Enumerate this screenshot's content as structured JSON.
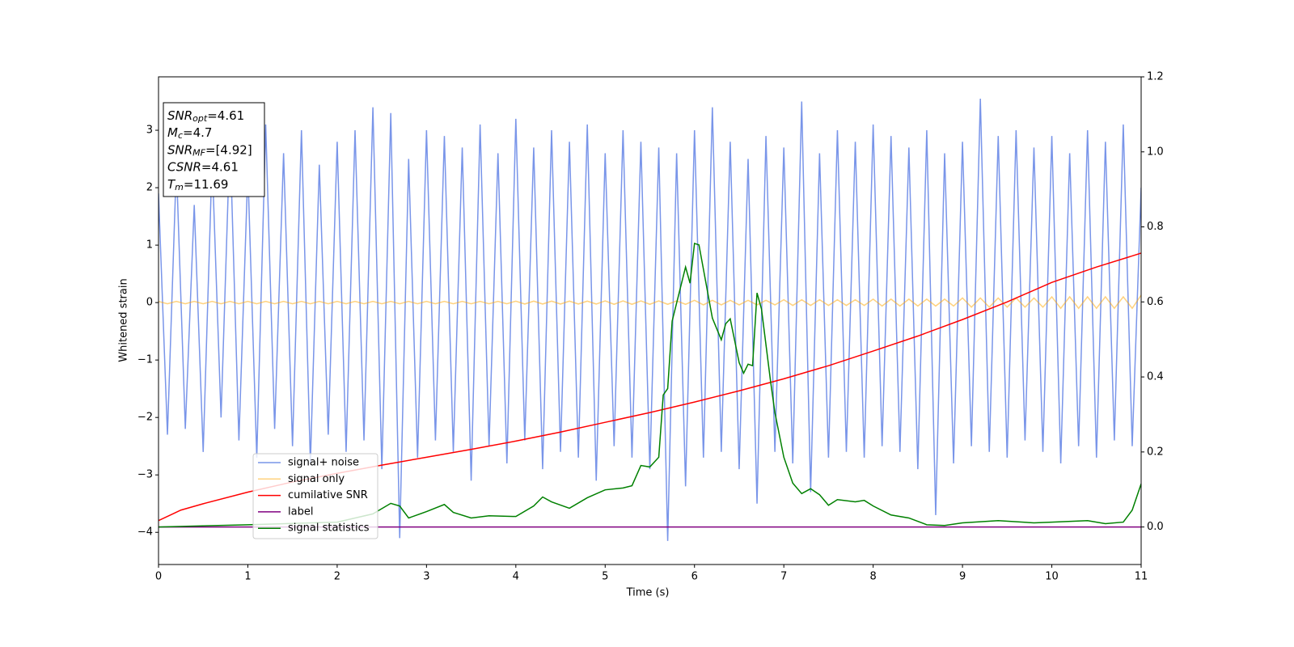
{
  "chart_data": {
    "type": "line",
    "xlabel": "Time (s)",
    "ylabel": "Whitened strain",
    "xlim": [
      0,
      11
    ],
    "xticks": [
      0,
      1,
      2,
      3,
      4,
      5,
      6,
      7,
      8,
      9,
      10,
      11
    ],
    "ylim": [
      -4.56,
      3.93
    ],
    "yticks": [
      {
        "value": -4,
        "label": "−4"
      },
      {
        "value": -3,
        "label": "−3"
      },
      {
        "value": -2,
        "label": "−2"
      },
      {
        "value": -1,
        "label": "−1"
      },
      0,
      1,
      2,
      3
    ],
    "y2lim": [
      -0.1,
      1.2
    ],
    "y2ticks": [
      {
        "value": 0,
        "label": "0.0"
      },
      0.2,
      0.4,
      0.6,
      0.8,
      {
        "value": 1,
        "label": "1.0"
      },
      1.2
    ],
    "legend": "lower left",
    "annotations": [
      {
        "symbol": "SNR",
        "sub": "opt",
        "text": "=4.61"
      },
      {
        "symbol": "M",
        "sub": "c",
        "text": "=4.7"
      },
      {
        "symbol": "SNR",
        "sub": "MF",
        "text": "=[4.92]"
      },
      {
        "symbol": "CSNR",
        "text": "=4.61"
      },
      {
        "symbol": "T",
        "sub": "m",
        "text": "=11.69"
      }
    ],
    "x": [
      0,
      0.1,
      0.2,
      0.3,
      0.4,
      0.5,
      0.6,
      0.7,
      0.8,
      0.9,
      1,
      1.1,
      1.2,
      1.3,
      1.4,
      1.5,
      1.6,
      1.7,
      1.8,
      1.9,
      2,
      2.1,
      2.2,
      2.3,
      2.4,
      2.5,
      2.6,
      2.7,
      2.8,
      2.9,
      3,
      3.1,
      3.2,
      3.3,
      3.4,
      3.5,
      3.6,
      3.7,
      3.8,
      3.9,
      4,
      4.1,
      4.2,
      4.3,
      4.4,
      4.5,
      4.6,
      4.7,
      4.8,
      4.9,
      5,
      5.1,
      5.2,
      5.3,
      5.4,
      5.5,
      5.6,
      5.7,
      5.8,
      5.9,
      6,
      6.1,
      6.2,
      6.3,
      6.4,
      6.5,
      6.6,
      6.7,
      6.8,
      6.9,
      7,
      7.1,
      7.2,
      7.3,
      7.4,
      7.5,
      7.6,
      7.7,
      7.8,
      7.9,
      8,
      8.1,
      8.2,
      8.3,
      8.4,
      8.5,
      8.6,
      8.7,
      8.8,
      8.9,
      9,
      9.1,
      9.2,
      9.3,
      9.4,
      9.5,
      9.6,
      9.7,
      9.8,
      9.9,
      10,
      10.1,
      10.2,
      10.3,
      10.4,
      10.5,
      10.6,
      10.7,
      10.8,
      10.9,
      11
    ],
    "series": [
      {
        "name": "signal+ noise",
        "color": "#7995e9",
        "axis": "y",
        "values": [
          1.9,
          -2.3,
          2.4,
          -2.2,
          1.7,
          -2.6,
          2.5,
          -2.0,
          2.9,
          -2.4,
          2.3,
          -2.7,
          3.1,
          -2.2,
          2.6,
          -2.5,
          3.0,
          -2.8,
          2.4,
          -2.3,
          2.8,
          -2.6,
          3.0,
          -2.4,
          3.4,
          -2.9,
          3.3,
          -4.1,
          2.5,
          -2.7,
          3.0,
          -2.4,
          2.9,
          -2.6,
          2.7,
          -3.1,
          3.1,
          -2.5,
          2.6,
          -2.8,
          3.2,
          -2.4,
          2.7,
          -2.9,
          3.0,
          -2.6,
          2.8,
          -2.7,
          3.1,
          -3.1,
          2.6,
          -2.5,
          3.0,
          -2.7,
          2.8,
          -2.9,
          2.7,
          -4.15,
          2.6,
          -3.2,
          3.0,
          -2.7,
          3.4,
          -2.6,
          2.8,
          -2.9,
          2.5,
          -3.5,
          2.9,
          -2.6,
          2.7,
          -2.8,
          3.5,
          -3.3,
          2.6,
          -2.7,
          3.0,
          -2.6,
          2.8,
          -2.7,
          3.1,
          -2.5,
          2.9,
          -2.6,
          2.7,
          -2.9,
          3.0,
          -3.7,
          2.6,
          -2.8,
          2.8,
          -2.5,
          3.55,
          -2.6,
          2.9,
          -2.7,
          3.0,
          -2.4,
          2.7,
          -2.6,
          2.9,
          -2.8,
          2.6,
          -2.5,
          3.0,
          -2.7,
          2.8,
          -2.4,
          3.1,
          -2.5,
          2.0
        ]
      },
      {
        "name": "signal only",
        "color": "#ffa500",
        "axis": "y",
        "values": [
          0.02,
          -0.02,
          0.02,
          -0.02,
          0.02,
          -0.02,
          0.02,
          -0.02,
          0.02,
          -0.02,
          0.02,
          -0.02,
          0.02,
          -0.02,
          0.02,
          -0.02,
          0.02,
          -0.02,
          0.02,
          -0.02,
          0.02,
          -0.02,
          0.02,
          -0.02,
          0.02,
          -0.02,
          0.02,
          -0.02,
          0.02,
          -0.02,
          0.02,
          -0.02,
          0.02,
          -0.02,
          0.02,
          -0.02,
          0.02,
          -0.02,
          0.02,
          -0.02,
          0.025,
          -0.025,
          0.025,
          -0.025,
          0.025,
          -0.025,
          0.025,
          -0.025,
          0.025,
          -0.025,
          0.03,
          -0.03,
          0.03,
          -0.03,
          0.03,
          -0.03,
          0.03,
          -0.03,
          0.03,
          -0.03,
          0.04,
          -0.04,
          0.04,
          -0.04,
          0.04,
          -0.04,
          0.04,
          -0.04,
          0.04,
          -0.04,
          0.05,
          -0.05,
          0.05,
          -0.05,
          0.05,
          -0.05,
          0.05,
          -0.05,
          0.05,
          -0.05,
          0.06,
          -0.06,
          0.06,
          -0.06,
          0.06,
          -0.06,
          0.06,
          -0.06,
          0.06,
          -0.06,
          0.08,
          -0.08,
          0.08,
          -0.08,
          0.08,
          -0.08,
          0.08,
          -0.08,
          0.08,
          -0.08,
          0.1,
          -0.1,
          0.1,
          -0.1,
          0.1,
          -0.1,
          0.1,
          -0.1,
          0.1,
          -0.1,
          0.13
        ]
      },
      {
        "name": "cumilative SNR",
        "color": "#ff0000",
        "axis": "y2",
        "x": [
          0,
          0.25,
          0.5,
          1,
          1.5,
          2,
          2.5,
          3,
          3.5,
          4,
          4.5,
          5,
          5.5,
          6,
          6.5,
          7,
          7.5,
          8,
          8.5,
          9,
          9.5,
          10,
          10.5,
          11
        ],
        "values": [
          0.017,
          0.045,
          0.062,
          0.093,
          0.12,
          0.143,
          0.165,
          0.186,
          0.207,
          0.229,
          0.253,
          0.279,
          0.305,
          0.333,
          0.363,
          0.395,
          0.43,
          0.469,
          0.509,
          0.553,
          0.6,
          0.652,
          0.693,
          0.73
        ]
      },
      {
        "name": "label",
        "color": "#800080",
        "axis": "y2",
        "x": [
          0,
          11
        ],
        "values": [
          0,
          0
        ]
      },
      {
        "name": "signal statistics",
        "color": "#008000",
        "axis": "y2",
        "x": [
          0,
          1,
          2,
          2.4,
          2.6,
          2.7,
          2.8,
          3,
          3.2,
          3.3,
          3.5,
          3.7,
          4,
          4.2,
          4.3,
          4.4,
          4.6,
          4.8,
          5,
          5.2,
          5.3,
          5.4,
          5.5,
          5.6,
          5.65,
          5.7,
          5.75,
          5.9,
          5.95,
          6,
          6.05,
          6.2,
          6.3,
          6.35,
          6.4,
          6.5,
          6.55,
          6.6,
          6.65,
          6.7,
          6.75,
          6.85,
          6.9,
          7,
          7.1,
          7.2,
          7.3,
          7.4,
          7.5,
          7.6,
          7.8,
          7.9,
          8,
          8.2,
          8.4,
          8.6,
          8.8,
          9,
          9.4,
          9.8,
          10,
          10.4,
          10.6,
          10.8,
          10.9,
          11
        ],
        "values": [
          0,
          0.006,
          0.013,
          0.035,
          0.063,
          0.056,
          0.024,
          0.041,
          0.06,
          0.039,
          0.024,
          0.03,
          0.028,
          0.056,
          0.08,
          0.067,
          0.05,
          0.078,
          0.099,
          0.104,
          0.11,
          0.164,
          0.16,
          0.186,
          0.352,
          0.369,
          0.549,
          0.693,
          0.65,
          0.756,
          0.752,
          0.557,
          0.499,
          0.542,
          0.555,
          0.438,
          0.41,
          0.434,
          0.43,
          0.624,
          0.581,
          0.391,
          0.305,
          0.186,
          0.117,
          0.089,
          0.102,
          0.086,
          0.058,
          0.073,
          0.067,
          0.071,
          0.056,
          0.032,
          0.024,
          0.006,
          0.004,
          0.011,
          0.017,
          0.011,
          0.013,
          0.017,
          0.009,
          0.013,
          0.045,
          0.115
        ]
      }
    ]
  }
}
